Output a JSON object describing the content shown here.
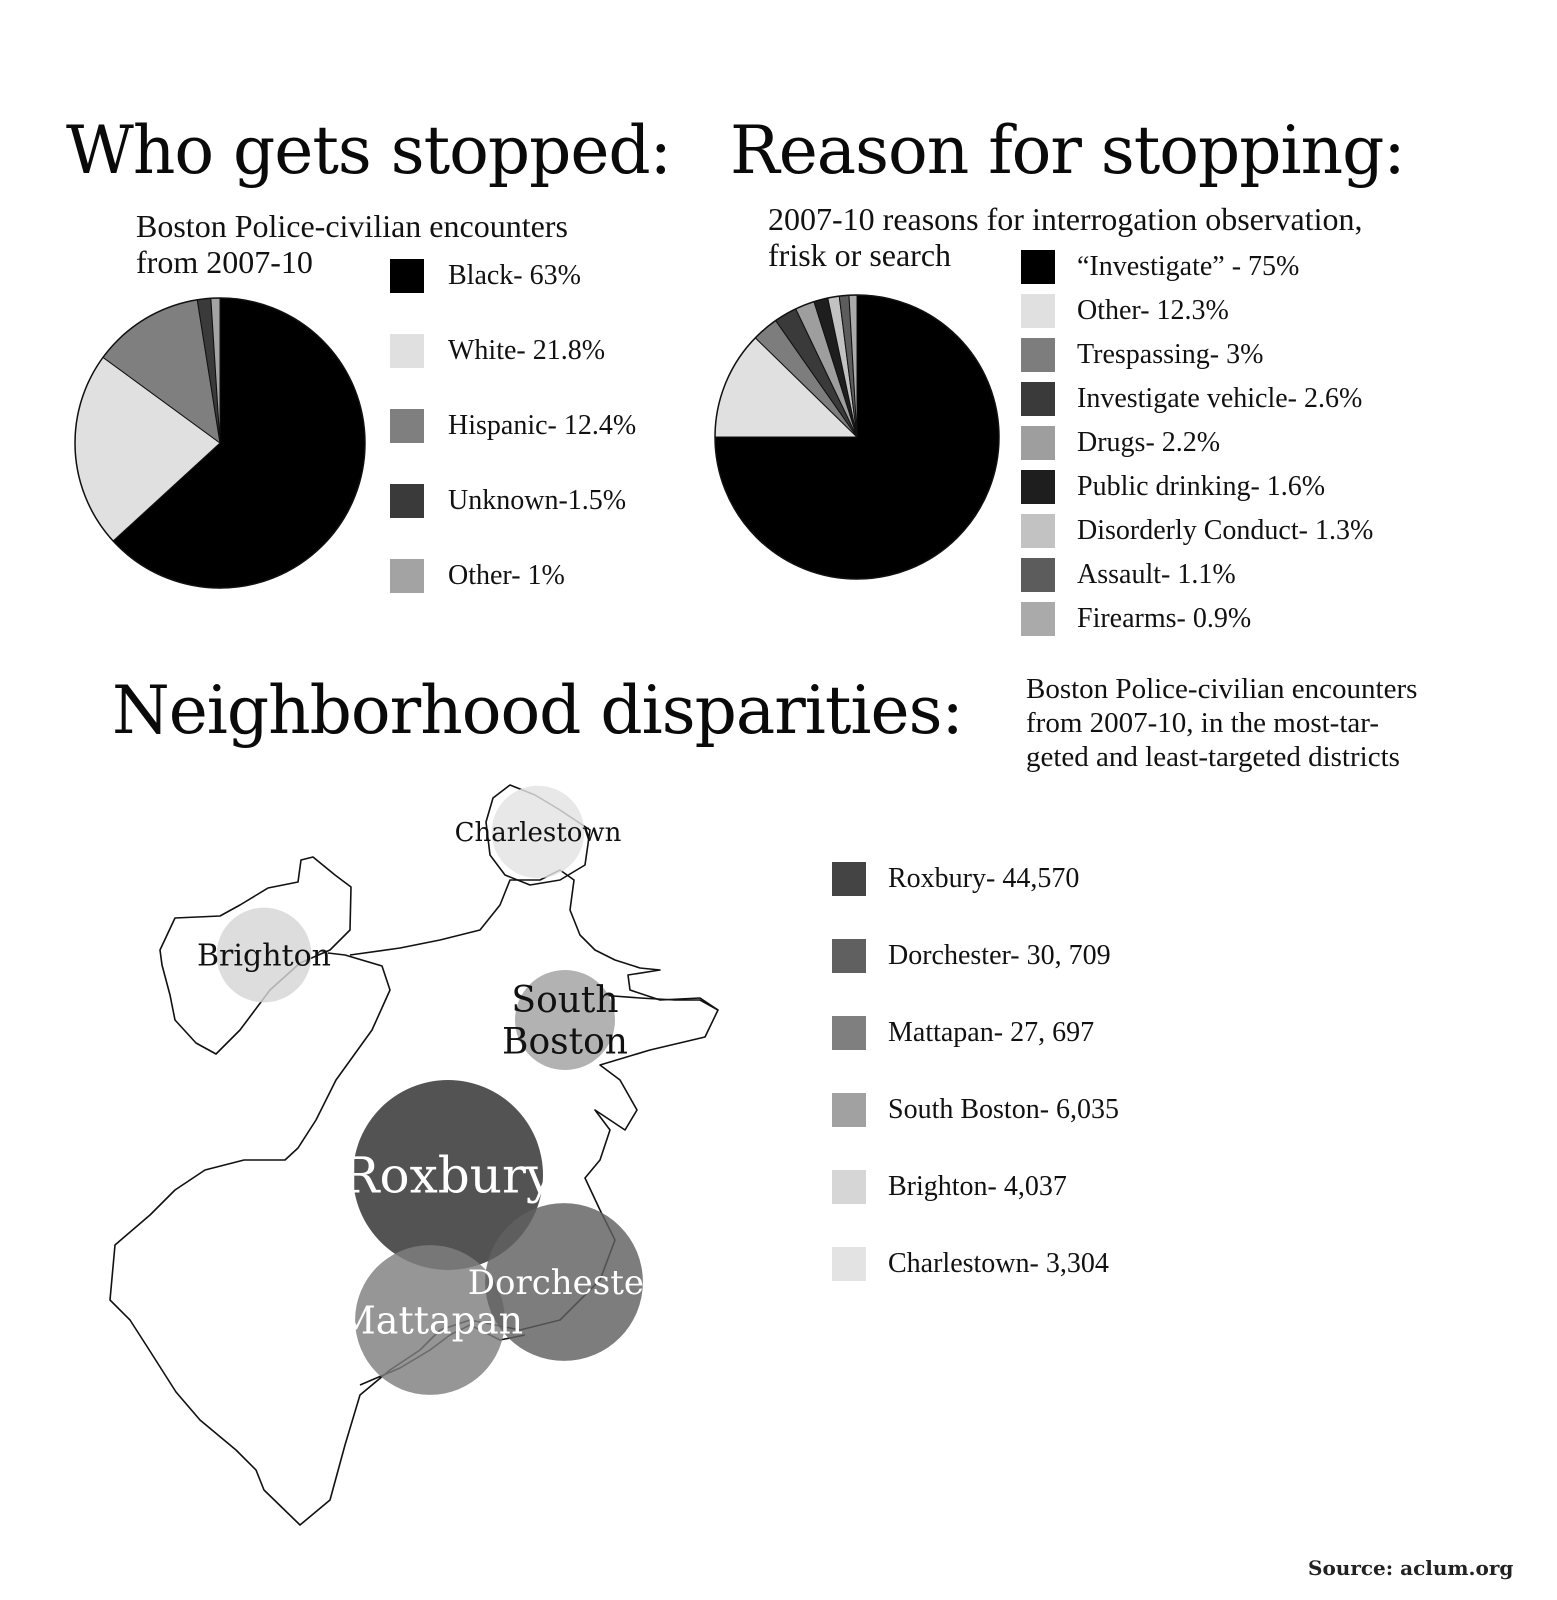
{
  "chart_data": [
    {
      "type": "pie",
      "title": "Who gets stopped:",
      "subtitle": "Boston Police-civilian encounters\nfrom 2007-10",
      "slices": [
        {
          "label": "Black- 63%",
          "value": 63,
          "color": "#000000"
        },
        {
          "label": "White- 21.8%",
          "value": 21.8,
          "color": "#e0e0e0"
        },
        {
          "label": "Hispanic- 12.4%",
          "value": 12.4,
          "color": "#7f7f7f"
        },
        {
          "label": "Unknown-1.5%",
          "value": 1.5,
          "color": "#3a3a3a"
        },
        {
          "label": "Other- 1%",
          "value": 1,
          "color": "#a3a3a3"
        }
      ]
    },
    {
      "type": "pie",
      "title": "Reason for stopping:",
      "subtitle": "2007-10 reasons for interrogation observation,\nfrisk or search",
      "slices": [
        {
          "label": "“Investigate” - 75%",
          "value": 75,
          "color": "#000000"
        },
        {
          "label": "Other- 12.3%",
          "value": 12.3,
          "color": "#e0e0e0"
        },
        {
          "label": "Trespassing- 3%",
          "value": 3,
          "color": "#7d7d7d"
        },
        {
          "label": "Investigate vehicle- 2.6%",
          "value": 2.6,
          "color": "#3a3a3a"
        },
        {
          "label": "Drugs- 2.2%",
          "value": 2.2,
          "color": "#9e9e9e"
        },
        {
          "label": "Public drinking- 1.6%",
          "value": 1.6,
          "color": "#1e1e1e"
        },
        {
          "label": "Disorderly Conduct- 1.3%",
          "value": 1.3,
          "color": "#c2c2c2"
        },
        {
          "label": "Assault- 1.1%",
          "value": 1.1,
          "color": "#5c5c5c"
        },
        {
          "label": "Firearms- 0.9%",
          "value": 0.9,
          "color": "#aaaaaa"
        }
      ]
    },
    {
      "type": "bubble-map",
      "title": "Neighborhood disparities:",
      "subtitle": "Boston Police-civilian encounters\nfrom 2007-10, in the most-tar-\ngeted and least-targeted districts",
      "districts": [
        {
          "name": "Roxbury",
          "map_label": "Roxbury",
          "label": "Roxbury- 44,570",
          "value": 44570,
          "color": "#444444"
        },
        {
          "name": "Dorchester",
          "map_label": "Dorchester",
          "label": "Dorchester- 30, 709",
          "value": 30709,
          "color": "#606060"
        },
        {
          "name": "Mattapan",
          "map_label": "Mattapan",
          "label": "Mattapan- 27, 697",
          "value": 27697,
          "color": "#7f7f7f"
        },
        {
          "name": "South Boston",
          "map_label": "South\nBoston",
          "label": "South Boston- 6,035",
          "value": 6035,
          "color": "#a1a1a1"
        },
        {
          "name": "Brighton",
          "map_label": "Brighton",
          "label": "Brighton- 4,037",
          "value": 4037,
          "color": "#d6d6d6"
        },
        {
          "name": "Charlestown",
          "map_label": "Charlestown",
          "label": "Charlestown- 3,304",
          "value": 3304,
          "color": "#e3e3e3"
        }
      ]
    }
  ],
  "source": "Source: aclum.org"
}
